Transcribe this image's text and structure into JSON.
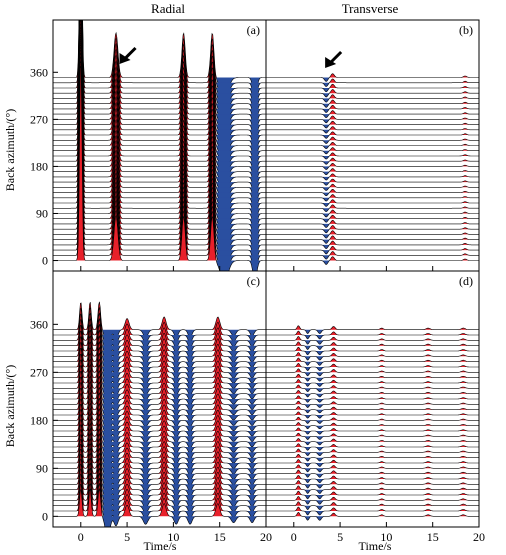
{
  "columns": [
    "Radial",
    "Transverse"
  ],
  "xlabel": "Time/s",
  "ylabel": "Back azimuth/(°)",
  "yticks": [
    "0",
    "90",
    "180",
    "270",
    "360"
  ],
  "xticks": [
    "0",
    "5",
    "10",
    "15",
    "20"
  ],
  "colors": {
    "positive": "#e8202a",
    "negative": "#2a4fa0",
    "line": "#000000",
    "trace": "#7a7a7a"
  },
  "chart_data": [
    {
      "panel": "(a)",
      "type": "line",
      "component": "Radial",
      "xlim": [
        -3,
        20
      ],
      "ylim": [
        -20,
        460
      ],
      "trace_spacing_deg": 10,
      "baz_range": [
        0,
        350
      ],
      "arrow": true,
      "phases": [
        {
          "t": 0.0,
          "amp": 1.0,
          "width": 0.18,
          "note": "Direct P (tallest, truncated at top)"
        },
        {
          "t": 3.8,
          "amp": 0.22,
          "width": 0.3
        },
        {
          "t": 11.1,
          "amp": 0.22,
          "width": 0.25
        },
        {
          "t": 14.2,
          "amp": 0.22,
          "width": 0.25
        },
        {
          "t": 15.5,
          "amp": -0.1,
          "width": 0.6
        },
        {
          "t": 18.8,
          "amp": -0.1,
          "width": 0.3
        }
      ]
    },
    {
      "panel": "(b)",
      "type": "line",
      "component": "Transverse",
      "xlim": [
        -3,
        20
      ],
      "ylim": [
        -20,
        460
      ],
      "trace_spacing_deg": 10,
      "baz_range": [
        0,
        350
      ],
      "arrow": true,
      "phases": [
        {
          "t": 3.5,
          "amp": -0.05,
          "width": 0.25
        },
        {
          "t": 4.2,
          "amp": 0.05,
          "width": 0.25
        },
        {
          "t": 18.5,
          "amp": 0.02,
          "width": 0.25
        }
      ]
    },
    {
      "panel": "(c)",
      "type": "line",
      "component": "Radial",
      "xlim": [
        -3,
        20
      ],
      "ylim": [
        -20,
        460
      ],
      "trace_spacing_deg": 10,
      "baz_range": [
        0,
        350
      ],
      "arrow": false,
      "phases": [
        {
          "t": 0.0,
          "amp": 0.35,
          "width": 0.18
        },
        {
          "t": 1.0,
          "amp": 0.35,
          "width": 0.18
        },
        {
          "t": 2.0,
          "amp": 0.35,
          "width": 0.2
        },
        {
          "t": 2.9,
          "amp": -0.28,
          "width": 0.35
        },
        {
          "t": 3.8,
          "amp": -0.12,
          "width": 0.3
        },
        {
          "t": 5.0,
          "amp": 0.14,
          "width": 0.3
        },
        {
          "t": 7.0,
          "amp": -0.1,
          "width": 0.35
        },
        {
          "t": 9.0,
          "amp": 0.16,
          "width": 0.3
        },
        {
          "t": 10.3,
          "amp": -0.1,
          "width": 0.3
        },
        {
          "t": 11.8,
          "amp": -0.1,
          "width": 0.3
        },
        {
          "t": 14.8,
          "amp": 0.16,
          "width": 0.3
        },
        {
          "t": 16.5,
          "amp": -0.08,
          "width": 0.35
        },
        {
          "t": 18.5,
          "amp": -0.08,
          "width": 0.3
        }
      ]
    },
    {
      "panel": "(d)",
      "type": "line",
      "component": "Transverse",
      "xlim": [
        -3,
        20
      ],
      "ylim": [
        -20,
        460
      ],
      "trace_spacing_deg": 10,
      "baz_range": [
        0,
        350
      ],
      "arrow": false,
      "phases": [
        {
          "t": 0.5,
          "amp": 0.05,
          "width": 0.2
        },
        {
          "t": 1.5,
          "amp": -0.05,
          "width": 0.2
        },
        {
          "t": 2.8,
          "amp": -0.05,
          "width": 0.25
        },
        {
          "t": 4.3,
          "amp": 0.04,
          "width": 0.25
        },
        {
          "t": 9.5,
          "amp": 0.02,
          "width": 0.25
        },
        {
          "t": 14.5,
          "amp": 0.02,
          "width": 0.3
        },
        {
          "t": 18.3,
          "amp": 0.02,
          "width": 0.3
        }
      ]
    }
  ]
}
